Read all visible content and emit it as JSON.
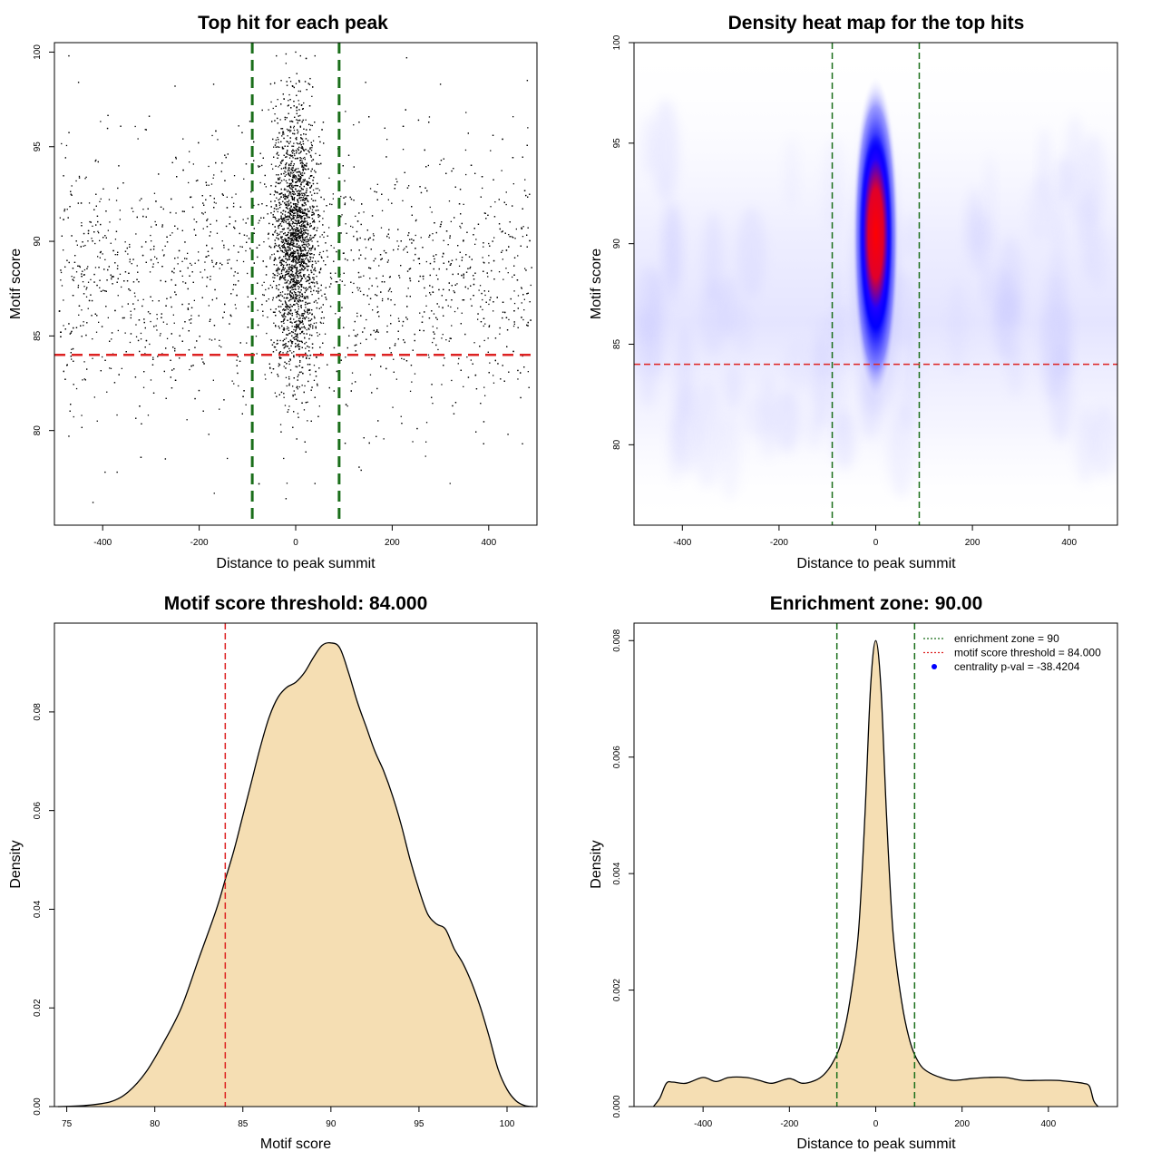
{
  "chart_data": [
    {
      "id": "scatter",
      "type": "scatter",
      "title": "Top hit for each peak",
      "xlabel": "Distance to peak summit",
      "ylabel": "Motif score",
      "xlim": [
        -500,
        500
      ],
      "ylim": [
        75,
        100.5
      ],
      "xticks": [
        -400,
        -200,
        0,
        200,
        400
      ],
      "yticks": [
        80,
        85,
        90,
        95,
        100
      ],
      "vlines": [
        -90,
        90
      ],
      "hline": 84,
      "point_color": "#000000",
      "vline_color": "#1a6e1a",
      "hline_color": "#dd2222",
      "sample_points": [
        [
          0,
          100
        ],
        [
          10,
          99.8
        ],
        [
          -20,
          99.9
        ],
        [
          40,
          99.8
        ],
        [
          -40,
          99.8
        ],
        [
          30,
          98.6
        ],
        [
          -30,
          98.5
        ],
        [
          -470,
          99.8
        ],
        [
          -450,
          98.4
        ],
        [
          -250,
          98.2
        ],
        [
          -170,
          98.3
        ],
        [
          145,
          98.4
        ],
        [
          230,
          99.7
        ],
        [
          300,
          98.3
        ],
        [
          480,
          98.5
        ],
        [
          -420,
          76.2
        ],
        [
          -395,
          77.8
        ],
        [
          -370,
          77.8
        ],
        [
          -470,
          79.7
        ],
        [
          -270,
          78.5
        ],
        [
          -180,
          79.8
        ],
        [
          440,
          79.8
        ],
        [
          470,
          79.3
        ],
        [
          -20,
          76.4
        ],
        [
          40,
          77.2
        ]
      ],
      "point_count_estimate": 17000
    },
    {
      "id": "heatmap",
      "type": "heatmap",
      "title": "Density heat map for the top hits",
      "xlabel": "Distance to peak summit",
      "ylabel": "Motif score",
      "xlim": [
        -500,
        500
      ],
      "ylim": [
        76,
        100
      ],
      "xticks": [
        -400,
        -200,
        0,
        200,
        400
      ],
      "yticks": [
        80,
        85,
        90,
        95,
        100
      ],
      "vlines": [
        -90,
        90
      ],
      "hline": 84,
      "density_peak": {
        "x": 0,
        "y": 90.5
      },
      "color_scale": [
        "#ffffff",
        "#0000ff",
        "#ff0000"
      ],
      "vline_color": "#1a6e1a",
      "hline_color": "#dd2222"
    },
    {
      "id": "score-density",
      "type": "area",
      "title": "Motif score threshold: 84.000",
      "xlabel": "Motif score",
      "ylabel": "Density",
      "xlim": [
        74.3,
        101.7
      ],
      "ylim": [
        0,
        0.098
      ],
      "xticks": [
        75,
        80,
        85,
        90,
        95,
        100
      ],
      "yticks": [
        0.0,
        0.02,
        0.04,
        0.06,
        0.08
      ],
      "ytick_labels": [
        "0.00",
        "0.02",
        "0.04",
        "0.06",
        "0.08"
      ],
      "vline": 84,
      "vline_color": "#dd2222",
      "fill_color": "#f5deb3",
      "x": [
        74.5,
        76,
        77.5,
        78.5,
        79.5,
        80.5,
        81.5,
        82.5,
        83.5,
        84,
        84.5,
        85,
        85.5,
        86,
        86.5,
        87,
        87.5,
        88,
        88.5,
        89,
        89.5,
        90,
        90.5,
        91,
        91.5,
        92,
        92.5,
        93,
        93.5,
        94,
        94.5,
        95,
        95.5,
        96,
        96.5,
        97,
        97.5,
        98,
        98.5,
        99,
        99.5,
        100,
        100.5,
        101,
        101.5
      ],
      "y": [
        0,
        0.0002,
        0.001,
        0.003,
        0.007,
        0.013,
        0.02,
        0.03,
        0.04,
        0.046,
        0.052,
        0.059,
        0.066,
        0.073,
        0.079,
        0.083,
        0.085,
        0.086,
        0.088,
        0.091,
        0.0935,
        0.094,
        0.093,
        0.088,
        0.082,
        0.077,
        0.072,
        0.068,
        0.063,
        0.057,
        0.05,
        0.044,
        0.039,
        0.037,
        0.036,
        0.032,
        0.029,
        0.025,
        0.02,
        0.014,
        0.0075,
        0.0035,
        0.0012,
        0.0002,
        0
      ]
    },
    {
      "id": "distance-density",
      "type": "area",
      "title": "Enrichment zone: 90.00",
      "xlabel": "Distance to peak summit",
      "ylabel": "Density",
      "xlim": [
        -560,
        560
      ],
      "ylim": [
        0,
        0.0083
      ],
      "xticks": [
        -400,
        -200,
        0,
        200,
        400
      ],
      "yticks": [
        0.0,
        0.002,
        0.004,
        0.006,
        0.008
      ],
      "ytick_labels": [
        "0.000",
        "0.002",
        "0.004",
        "0.006",
        "0.008"
      ],
      "vlines": [
        -90,
        90
      ],
      "vline_color": "#1a6e1a",
      "fill_color": "#f5deb3",
      "x": [
        -515,
        -500,
        -485,
        -470,
        -440,
        -400,
        -370,
        -340,
        -300,
        -270,
        -240,
        -200,
        -170,
        -140,
        -120,
        -100,
        -80,
        -60,
        -40,
        -25,
        -12,
        0,
        12,
        25,
        40,
        60,
        80,
        100,
        120,
        150,
        180,
        220,
        260,
        300,
        340,
        380,
        420,
        460,
        480,
        495,
        505,
        515
      ],
      "y": [
        0,
        0.00015,
        0.0004,
        0.00042,
        0.0004,
        0.0005,
        0.00043,
        0.0005,
        0.0005,
        0.00045,
        0.0004,
        0.00048,
        0.0004,
        0.00045,
        0.00055,
        0.00075,
        0.0011,
        0.0018,
        0.003,
        0.005,
        0.0072,
        0.008,
        0.0072,
        0.005,
        0.003,
        0.0018,
        0.0011,
        0.00075,
        0.0006,
        0.0005,
        0.00045,
        0.00048,
        0.0005,
        0.0005,
        0.00045,
        0.00045,
        0.00045,
        0.00042,
        0.0004,
        0.00035,
        0.0001,
        0
      ],
      "legend": [
        {
          "label": "enrichment zone = 90",
          "color": "#1a6e1a",
          "kind": "line"
        },
        {
          "label": "motif score threshold = 84.000",
          "color": "#dd2222",
          "kind": "line"
        },
        {
          "label": "centrality p-val = -38.4204",
          "color": "#0000ff",
          "kind": "point"
        }
      ],
      "legend_position": "top-right"
    }
  ]
}
